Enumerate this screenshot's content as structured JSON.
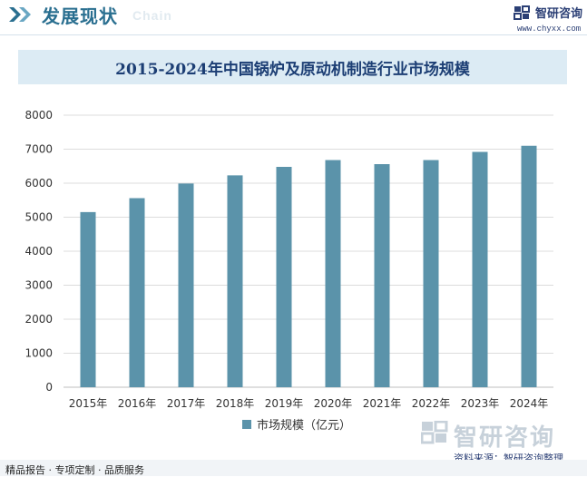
{
  "header": {
    "section_title": "发展现状",
    "section_subtitle": "Chain",
    "logo_name": "智研咨询",
    "logo_url": "www.chyxx.com"
  },
  "chart_data": {
    "type": "bar",
    "title": "2015-2024年中国锅炉及原动机制造行业市场规模",
    "categories": [
      "2015年",
      "2016年",
      "2017年",
      "2018年",
      "2019年",
      "2020年",
      "2021年",
      "2022年",
      "2023年",
      "2024年"
    ],
    "series": [
      {
        "name": "市场规模（亿元）",
        "values": [
          5150,
          5560,
          5990,
          6230,
          6480,
          6680,
          6560,
          6680,
          6920,
          7100
        ]
      }
    ],
    "y_ticks": [
      "0",
      "1000",
      "2000",
      "3000",
      "4000",
      "5000",
      "6000",
      "7000",
      "8000"
    ],
    "ylim": [
      0,
      8000
    ],
    "grid": true,
    "legend_position": "bottom",
    "bar_color": "#5b93aa"
  },
  "footer": {
    "watermark": "智研咨询",
    "source": "资料来源：智研咨询整理",
    "slogan": "精品报告 · 专项定制 · 品质服务"
  }
}
